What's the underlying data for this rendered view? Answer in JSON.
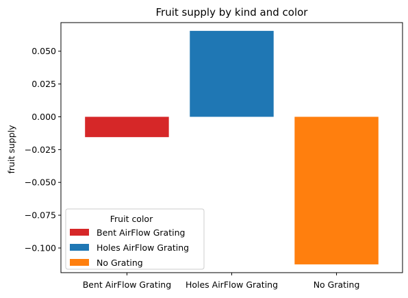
{
  "chart_data": {
    "type": "bar",
    "title": "Fruit supply by kind and color",
    "xlabel": "",
    "ylabel": "fruit supply",
    "categories": [
      "Bent AirFlow Grating",
      "Holes AirFlow Grating",
      "No Grating"
    ],
    "values": [
      -0.0155,
      0.0655,
      -0.1125
    ],
    "colors": [
      "#d62728",
      "#1f77b4",
      "#ff7f0e"
    ],
    "ylim": [
      -0.1188,
      0.0718
    ],
    "yticks": [
      -0.1,
      -0.075,
      -0.05,
      -0.025,
      0.0,
      0.025,
      0.05
    ],
    "ytick_labels": [
      "−0.100",
      "−0.075",
      "−0.050",
      "−0.025",
      "0.000",
      "0.025",
      "0.050"
    ],
    "grid": false,
    "legend": {
      "title": "Fruit color",
      "position": "lower-left",
      "entries": [
        "Bent AirFlow Grating",
        "Holes AirFlow Grating",
        "No Grating"
      ]
    }
  }
}
